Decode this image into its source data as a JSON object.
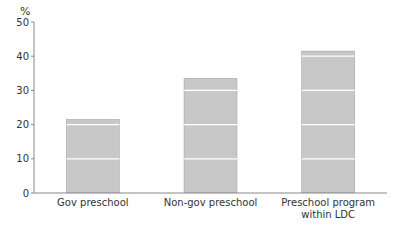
{
  "chart_data": {
    "type": "bar",
    "y_label": "%",
    "categories": [
      "Gov preschool",
      "Non-gov preschool",
      "Preschool program within LDC"
    ],
    "values": [
      21.5,
      33.5,
      41.5
    ],
    "color": "#c8c8c8",
    "ylim": [
      0,
      50
    ],
    "yticks": [
      0,
      10,
      20,
      30,
      40,
      50
    ],
    "grid": false
  }
}
